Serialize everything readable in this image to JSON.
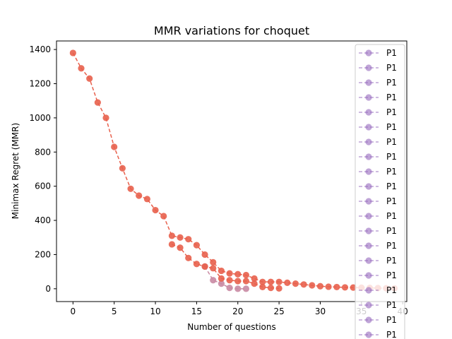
{
  "chart_data": {
    "type": "line",
    "title": "MMR variations for choquet",
    "xlabel": "Number of questions",
    "ylabel": "Minimax Regret (MMR)",
    "xlim": [
      -2,
      40.5
    ],
    "ylim": [
      -75,
      1450
    ],
    "xticks": [
      0,
      5,
      10,
      15,
      20,
      25,
      30,
      35,
      40
    ],
    "yticks": [
      0,
      200,
      400,
      600,
      800,
      1000,
      1200,
      1400
    ],
    "grid": false,
    "legend_position": "upper-right",
    "legend_entries": [
      "P1",
      "P1",
      "P1",
      "P1",
      "P1",
      "P1",
      "P1",
      "P1",
      "P1",
      "P1",
      "P1",
      "P1",
      "P1",
      "P1",
      "P1",
      "P1",
      "P1",
      "P1",
      "P1",
      "P1"
    ],
    "legend_color": "#9467bd",
    "colors": {
      "main": "#e8604c",
      "faded": "#c98aa3"
    },
    "series": [
      {
        "color": "#e8604c",
        "x": [
          0,
          1,
          2,
          3,
          4,
          5,
          6,
          7,
          8,
          9,
          10,
          11,
          12,
          13,
          14,
          15,
          16,
          17,
          18,
          19,
          20,
          21,
          22,
          23,
          24,
          25,
          26,
          27,
          28,
          29,
          30,
          31,
          32,
          33,
          34,
          35,
          36,
          37,
          38,
          39
        ],
        "y": [
          1380,
          1290,
          1230,
          1090,
          1000,
          830,
          705,
          585,
          545,
          525,
          460,
          425,
          310,
          300,
          290,
          255,
          200,
          155,
          105,
          90,
          85,
          80,
          60,
          40,
          40,
          40,
          35,
          30,
          25,
          20,
          15,
          12,
          10,
          8,
          7,
          6,
          5,
          4,
          3,
          2
        ]
      },
      {
        "color": "#e8604c",
        "x": [
          12,
          13,
          14,
          15,
          16,
          17,
          18,
          19,
          20,
          21,
          22,
          23,
          24,
          25
        ],
        "y": [
          260,
          240,
          180,
          145,
          130,
          120,
          60,
          50,
          45,
          45,
          30,
          10,
          5,
          2
        ]
      },
      {
        "color": "#c98aa3",
        "x": [
          16,
          17,
          18,
          19,
          20,
          21
        ],
        "y": [
          130,
          50,
          30,
          5,
          0,
          0
        ]
      }
    ]
  }
}
